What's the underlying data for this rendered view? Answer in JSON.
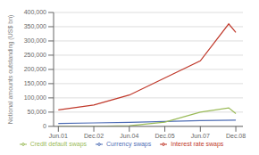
{
  "chart_data": {
    "type": "line",
    "title": "",
    "ylabel": "Notional amounts outstanding (US$ bn)",
    "series": [
      {
        "name": "Currency swaps",
        "color": "#4f6eb5",
        "x": [
          0,
          1.5,
          3,
          4.5,
          6,
          7.5
        ],
        "values": [
          10000,
          12000,
          14000,
          17000,
          20000,
          22000
        ]
      },
      {
        "name": "Interest rate swaps",
        "color": "#c0392b",
        "x": [
          0,
          1.5,
          3,
          4.5,
          6,
          7.2,
          7.5
        ],
        "values": [
          58000,
          75000,
          110000,
          170000,
          230000,
          360000,
          330000
        ]
      },
      {
        "name": "Credit default swaps",
        "color": "#9bbb59",
        "x": [
          0,
          1.5,
          3,
          4.5,
          6,
          7.2,
          7.5
        ],
        "values": [
          0,
          0,
          2000,
          15000,
          50000,
          65000,
          45000
        ]
      }
    ],
    "xlim": [
      -0.2,
      7.8
    ],
    "xticks": [
      {
        "value": 0,
        "label": "Jun.01"
      },
      {
        "value": 1.5,
        "label": "Dec.02"
      },
      {
        "value": 3,
        "label": "Jun.04"
      },
      {
        "value": 4.5,
        "label": "Dec.05"
      },
      {
        "value": 6,
        "label": "Jun.07"
      },
      {
        "value": 7.5,
        "label": "Dec.08"
      }
    ],
    "ylim": [
      0,
      400000
    ],
    "yticks": [
      0,
      {
        "value": 50000,
        "label": "50,000"
      },
      {
        "value": 100000,
        "label": "100,000"
      },
      {
        "value": 150000,
        "label": "150,000"
      },
      {
        "value": 200000,
        "label": "200,000"
      },
      {
        "value": 250000,
        "label": "250,000"
      },
      {
        "value": 300000,
        "label": "300,000"
      },
      {
        "value": 350000,
        "label": "350,000"
      },
      {
        "value": 400000,
        "label": "400,000"
      }
    ],
    "grid": "y",
    "legend": "bottom"
  }
}
